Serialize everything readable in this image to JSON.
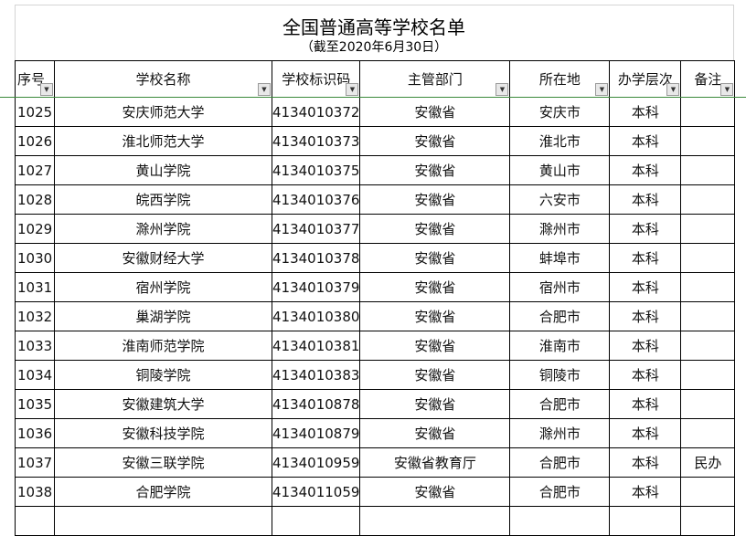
{
  "title": "全国普通高等学校名单",
  "subtitle": "（截至2020年6月30日）",
  "headers": [
    "序号",
    "学校名称",
    "学校标识码",
    "主管部门",
    "所在地",
    "办学层次",
    "备注"
  ],
  "filter_icon": "dropdown-arrow-icon",
  "rows": [
    [
      "1025",
      "安庆师范大学",
      "4134010372",
      "安徽省",
      "安庆市",
      "本科",
      ""
    ],
    [
      "1026",
      "淮北师范大学",
      "4134010373",
      "安徽省",
      "淮北市",
      "本科",
      ""
    ],
    [
      "1027",
      "黄山学院",
      "4134010375",
      "安徽省",
      "黄山市",
      "本科",
      ""
    ],
    [
      "1028",
      "皖西学院",
      "4134010376",
      "安徽省",
      "六安市",
      "本科",
      ""
    ],
    [
      "1029",
      "滁州学院",
      "4134010377",
      "安徽省",
      "滁州市",
      "本科",
      ""
    ],
    [
      "1030",
      "安徽财经大学",
      "4134010378",
      "安徽省",
      "蚌埠市",
      "本科",
      ""
    ],
    [
      "1031",
      "宿州学院",
      "4134010379",
      "安徽省",
      "宿州市",
      "本科",
      ""
    ],
    [
      "1032",
      "巢湖学院",
      "4134010380",
      "安徽省",
      "合肥市",
      "本科",
      ""
    ],
    [
      "1033",
      "淮南师范学院",
      "4134010381",
      "安徽省",
      "淮南市",
      "本科",
      ""
    ],
    [
      "1034",
      "铜陵学院",
      "4134010383",
      "安徽省",
      "铜陵市",
      "本科",
      ""
    ],
    [
      "1035",
      "安徽建筑大学",
      "4134010878",
      "安徽省",
      "合肥市",
      "本科",
      ""
    ],
    [
      "1036",
      "安徽科技学院",
      "4134010879",
      "安徽省",
      "滁州市",
      "本科",
      ""
    ],
    [
      "1037",
      "安徽三联学院",
      "4134010959",
      "安徽省教育厅",
      "合肥市",
      "本科",
      "民办"
    ],
    [
      "1038",
      "合肥学院",
      "4134011059",
      "安徽省",
      "合肥市",
      "本科",
      ""
    ]
  ]
}
